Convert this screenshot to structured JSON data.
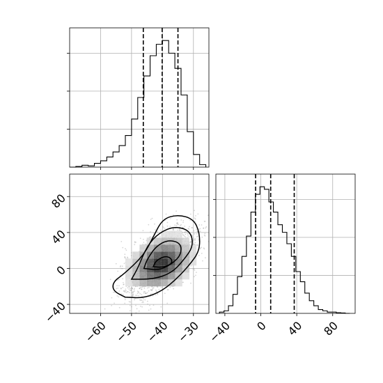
{
  "colors": {
    "ink": "#000000",
    "grid": "#b0b0b0",
    "points": "#8c8c8c",
    "background": "#ffffff"
  },
  "chart_data": [
    {
      "panel": "top-left",
      "type": "histogram",
      "variable": 1,
      "xlim": [
        -70,
        -25
      ],
      "ylim": [
        0,
        1
      ],
      "grid": true,
      "bins": [
        {
          "x": -70,
          "h": 0.0
        },
        {
          "x": -68,
          "h": 0.005
        },
        {
          "x": -66,
          "h": 0.015
        },
        {
          "x": -64,
          "h": 0.01
        },
        {
          "x": -62,
          "h": 0.03
        },
        {
          "x": -60,
          "h": 0.05
        },
        {
          "x": -58,
          "h": 0.08
        },
        {
          "x": -56,
          "h": 0.12
        },
        {
          "x": -54,
          "h": 0.17
        },
        {
          "x": -52,
          "h": 0.25
        },
        {
          "x": -50,
          "h": 0.38
        },
        {
          "x": -48,
          "h": 0.55
        },
        {
          "x": -46,
          "h": 0.72
        },
        {
          "x": -44,
          "h": 0.88
        },
        {
          "x": -42,
          "h": 0.97
        },
        {
          "x": -40,
          "h": 1.0
        },
        {
          "x": -38,
          "h": 0.9
        },
        {
          "x": -36,
          "h": 0.78
        },
        {
          "x": -34,
          "h": 0.57
        },
        {
          "x": -32,
          "h": 0.28
        },
        {
          "x": -30,
          "h": 0.1
        },
        {
          "x": -28,
          "h": 0.02
        }
      ],
      "bin_width": 2,
      "quantile_lines": [
        -46.2,
        -40.1,
        -35.0
      ]
    },
    {
      "panel": "bottom-left",
      "type": "scatter",
      "subtype": "2d-density-contour",
      "xlim": [
        -70,
        -25
      ],
      "ylim": [
        -50,
        105
      ],
      "grid": true,
      "x_ticks": [
        -60,
        -50,
        -40,
        -30
      ],
      "y_ticks": [
        -40,
        0,
        40,
        80
      ],
      "x_tick_labels": [
        "−60",
        "−50",
        "−40",
        "−30"
      ],
      "y_tick_labels": [
        "−40",
        "0",
        "40",
        "80"
      ],
      "peak": {
        "x": -40.5,
        "y": 5
      },
      "contours": [
        {
          "level": 1,
          "points": [
            [
              -52,
              -32
            ],
            [
              -56,
              -25
            ],
            [
              -56,
              -15
            ],
            [
              -52,
              -5
            ],
            [
              -46,
              15
            ],
            [
              -43,
              35
            ],
            [
              -40,
              55
            ],
            [
              -35,
              60
            ],
            [
              -30,
              55
            ],
            [
              -28,
              40
            ],
            [
              -28,
              20
            ],
            [
              -31,
              5
            ],
            [
              -35,
              -10
            ],
            [
              -40,
              -25
            ],
            [
              -46,
              -33
            ],
            [
              -52,
              -32
            ]
          ]
        },
        {
          "level": 2,
          "points": [
            [
              -50,
              -12
            ],
            [
              -48,
              0
            ],
            [
              -45,
              25
            ],
            [
              -41,
              40
            ],
            [
              -36,
              47
            ],
            [
              -31,
              42
            ],
            [
              -30,
              25
            ],
            [
              -33,
              10
            ],
            [
              -37,
              -5
            ],
            [
              -43,
              -12
            ],
            [
              -50,
              -12
            ]
          ]
        },
        {
          "level": 3,
          "points": [
            [
              -46,
              0
            ],
            [
              -45,
              10
            ],
            [
              -42,
              25
            ],
            [
              -38,
              32
            ],
            [
              -34,
              28
            ],
            [
              -34,
              15
            ],
            [
              -37,
              5
            ],
            [
              -41,
              -2
            ],
            [
              -46,
              0
            ]
          ]
        },
        {
          "level": 4,
          "points": [
            [
              -43,
              2
            ],
            [
              -42,
              9
            ],
            [
              -39,
              14
            ],
            [
              -37,
              11
            ],
            [
              -37,
              5
            ],
            [
              -40,
              1
            ],
            [
              -43,
              2
            ]
          ]
        }
      ]
    },
    {
      "panel": "bottom-right",
      "type": "histogram",
      "variable": 2,
      "xlim": [
        -50,
        105
      ],
      "ylim": [
        0,
        1
      ],
      "grid": true,
      "x_ticks": [
        -40,
        0,
        40,
        80
      ],
      "x_tick_labels": [
        "−40",
        "0",
        "40",
        "80"
      ],
      "bins": [
        {
          "x": -46,
          "h": 0.01
        },
        {
          "x": -41,
          "h": 0.02
        },
        {
          "x": -36,
          "h": 0.06
        },
        {
          "x": -31,
          "h": 0.15
        },
        {
          "x": -26,
          "h": 0.29
        },
        {
          "x": -21,
          "h": 0.45
        },
        {
          "x": -16,
          "h": 0.61
        },
        {
          "x": -11,
          "h": 0.8
        },
        {
          "x": -6,
          "h": 0.94
        },
        {
          "x": -1,
          "h": 1.0
        },
        {
          "x": 4,
          "h": 0.98
        },
        {
          "x": 9,
          "h": 0.88
        },
        {
          "x": 14,
          "h": 0.8
        },
        {
          "x": 19,
          "h": 0.7
        },
        {
          "x": 24,
          "h": 0.64
        },
        {
          "x": 29,
          "h": 0.55
        },
        {
          "x": 34,
          "h": 0.45
        },
        {
          "x": 39,
          "h": 0.33
        },
        {
          "x": 44,
          "h": 0.25
        },
        {
          "x": 49,
          "h": 0.16
        },
        {
          "x": 54,
          "h": 0.1
        },
        {
          "x": 59,
          "h": 0.06
        },
        {
          "x": 64,
          "h": 0.03
        },
        {
          "x": 69,
          "h": 0.02
        },
        {
          "x": 74,
          "h": 0.01
        },
        {
          "x": 79,
          "h": 0.01
        },
        {
          "x": 84,
          "h": 0.005
        },
        {
          "x": 89,
          "h": 0.003
        },
        {
          "x": 94,
          "h": 0.0
        }
      ],
      "bin_width": 5,
      "quantile_lines": [
        -5.8,
        11.0,
        37.2
      ]
    }
  ]
}
